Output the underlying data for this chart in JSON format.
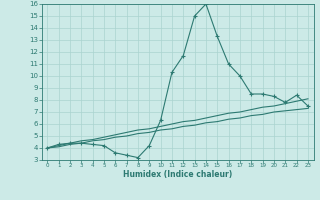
{
  "x": [
    0,
    1,
    2,
    3,
    4,
    5,
    6,
    7,
    8,
    9,
    10,
    11,
    12,
    13,
    14,
    15,
    16,
    17,
    18,
    19,
    20,
    21,
    22,
    23
  ],
  "line1": [
    4.0,
    4.3,
    4.4,
    4.4,
    4.3,
    4.2,
    3.6,
    3.4,
    3.2,
    4.2,
    6.3,
    10.3,
    11.7,
    15.0,
    16.0,
    13.3,
    11.0,
    10.0,
    8.5,
    8.5,
    8.3,
    7.8,
    8.4,
    7.5
  ],
  "line2": [
    4.0,
    4.2,
    4.4,
    4.6,
    4.7,
    4.9,
    5.1,
    5.3,
    5.5,
    5.6,
    5.8,
    6.0,
    6.2,
    6.3,
    6.5,
    6.7,
    6.9,
    7.0,
    7.2,
    7.4,
    7.5,
    7.7,
    7.9,
    8.1
  ],
  "line3": [
    4.0,
    4.1,
    4.3,
    4.4,
    4.6,
    4.7,
    4.9,
    5.0,
    5.2,
    5.3,
    5.5,
    5.6,
    5.8,
    5.9,
    6.1,
    6.2,
    6.4,
    6.5,
    6.7,
    6.8,
    7.0,
    7.1,
    7.2,
    7.3
  ],
  "color": "#2d7a72",
  "bg_color": "#cceae7",
  "grid_color": "#aad4d0",
  "xlabel": "Humidex (Indice chaleur)",
  "ylim": [
    3,
    16
  ],
  "xlim_min": -0.5,
  "xlim_max": 23.5,
  "yticks": [
    3,
    4,
    5,
    6,
    7,
    8,
    9,
    10,
    11,
    12,
    13,
    14,
    15,
    16
  ],
  "xticks": [
    0,
    1,
    2,
    3,
    4,
    5,
    6,
    7,
    8,
    9,
    10,
    11,
    12,
    13,
    14,
    15,
    16,
    17,
    18,
    19,
    20,
    21,
    22,
    23
  ],
  "marker": "+"
}
